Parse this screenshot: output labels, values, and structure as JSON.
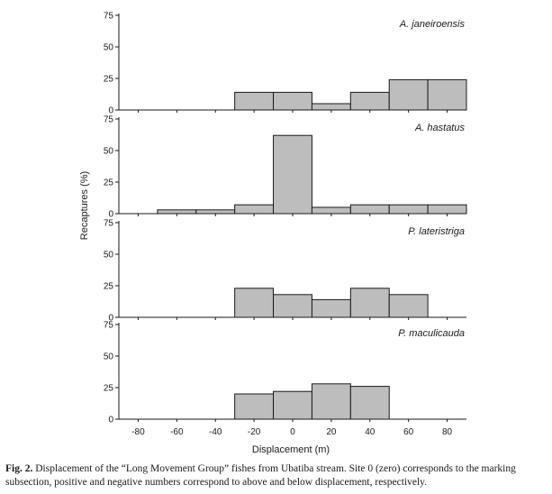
{
  "chart_data": {
    "type": "bar",
    "xlabel": "Displacement (m)",
    "ylabel": "Recaptures (%)",
    "bin_width": 20,
    "ylim": [
      0,
      75
    ],
    "yticks": [
      0,
      25,
      50,
      75
    ],
    "xlim": [
      -90,
      90
    ],
    "xticks": [
      -80,
      -60,
      -40,
      -20,
      0,
      20,
      40,
      60,
      80
    ],
    "grid": false,
    "panels": [
      {
        "species": "A. janeiroensis",
        "bars": [
          {
            "x": -20,
            "value": 14
          },
          {
            "x": 0,
            "value": 14
          },
          {
            "x": 20,
            "value": 5
          },
          {
            "x": 40,
            "value": 14
          },
          {
            "x": 60,
            "value": 24
          },
          {
            "x": 80,
            "value": 24
          }
        ]
      },
      {
        "species": "A. hastatus",
        "bars": [
          {
            "x": -60,
            "value": 3
          },
          {
            "x": -40,
            "value": 3
          },
          {
            "x": -20,
            "value": 7
          },
          {
            "x": 0,
            "value": 62
          },
          {
            "x": 20,
            "value": 5
          },
          {
            "x": 40,
            "value": 7
          },
          {
            "x": 60,
            "value": 7
          },
          {
            "x": 80,
            "value": 7
          }
        ]
      },
      {
        "species": "P. lateristriga",
        "bars": [
          {
            "x": -20,
            "value": 23
          },
          {
            "x": 0,
            "value": 18
          },
          {
            "x": 20,
            "value": 14
          },
          {
            "x": 40,
            "value": 23
          },
          {
            "x": 60,
            "value": 18
          }
        ]
      },
      {
        "species": "P. maculicauda",
        "bars": [
          {
            "x": -20,
            "value": 20
          },
          {
            "x": 0,
            "value": 22
          },
          {
            "x": 20,
            "value": 28
          },
          {
            "x": 40,
            "value": 26
          }
        ]
      }
    ]
  },
  "caption": {
    "label": "Fig. 2.",
    "text": " Displacement of the “Long Movement Group” fishes from Ubatiba stream. Site 0 (zero) corresponds to the marking subsection, positive and negative numbers correspond to above and below displacement, respectively."
  }
}
